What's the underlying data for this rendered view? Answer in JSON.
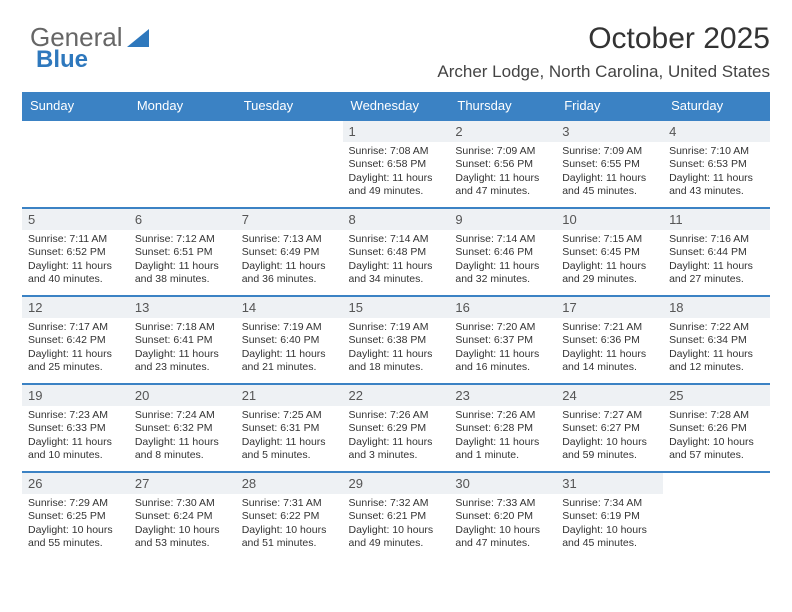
{
  "logo": {
    "word1": "General",
    "word2": "Blue",
    "color1": "#666666",
    "color2": "#2e78bd"
  },
  "title": "October 2025",
  "location": "Archer Lodge, North Carolina, United States",
  "header_bg": "#3b82c4",
  "header_fg": "#ffffff",
  "daynum_bg": "#eef1f4",
  "row_border": "#3b82c4",
  "weekdays": [
    "Sunday",
    "Monday",
    "Tuesday",
    "Wednesday",
    "Thursday",
    "Friday",
    "Saturday"
  ],
  "weeks": [
    [
      {
        "empty": true
      },
      {
        "empty": true
      },
      {
        "empty": true
      },
      {
        "num": "1",
        "sunrise": "7:08 AM",
        "sunset": "6:58 PM",
        "daylight": "11 hours and 49 minutes."
      },
      {
        "num": "2",
        "sunrise": "7:09 AM",
        "sunset": "6:56 PM",
        "daylight": "11 hours and 47 minutes."
      },
      {
        "num": "3",
        "sunrise": "7:09 AM",
        "sunset": "6:55 PM",
        "daylight": "11 hours and 45 minutes."
      },
      {
        "num": "4",
        "sunrise": "7:10 AM",
        "sunset": "6:53 PM",
        "daylight": "11 hours and 43 minutes."
      }
    ],
    [
      {
        "num": "5",
        "sunrise": "7:11 AM",
        "sunset": "6:52 PM",
        "daylight": "11 hours and 40 minutes."
      },
      {
        "num": "6",
        "sunrise": "7:12 AM",
        "sunset": "6:51 PM",
        "daylight": "11 hours and 38 minutes."
      },
      {
        "num": "7",
        "sunrise": "7:13 AM",
        "sunset": "6:49 PM",
        "daylight": "11 hours and 36 minutes."
      },
      {
        "num": "8",
        "sunrise": "7:14 AM",
        "sunset": "6:48 PM",
        "daylight": "11 hours and 34 minutes."
      },
      {
        "num": "9",
        "sunrise": "7:14 AM",
        "sunset": "6:46 PM",
        "daylight": "11 hours and 32 minutes."
      },
      {
        "num": "10",
        "sunrise": "7:15 AM",
        "sunset": "6:45 PM",
        "daylight": "11 hours and 29 minutes."
      },
      {
        "num": "11",
        "sunrise": "7:16 AM",
        "sunset": "6:44 PM",
        "daylight": "11 hours and 27 minutes."
      }
    ],
    [
      {
        "num": "12",
        "sunrise": "7:17 AM",
        "sunset": "6:42 PM",
        "daylight": "11 hours and 25 minutes."
      },
      {
        "num": "13",
        "sunrise": "7:18 AM",
        "sunset": "6:41 PM",
        "daylight": "11 hours and 23 minutes."
      },
      {
        "num": "14",
        "sunrise": "7:19 AM",
        "sunset": "6:40 PM",
        "daylight": "11 hours and 21 minutes."
      },
      {
        "num": "15",
        "sunrise": "7:19 AM",
        "sunset": "6:38 PM",
        "daylight": "11 hours and 18 minutes."
      },
      {
        "num": "16",
        "sunrise": "7:20 AM",
        "sunset": "6:37 PM",
        "daylight": "11 hours and 16 minutes."
      },
      {
        "num": "17",
        "sunrise": "7:21 AM",
        "sunset": "6:36 PM",
        "daylight": "11 hours and 14 minutes."
      },
      {
        "num": "18",
        "sunrise": "7:22 AM",
        "sunset": "6:34 PM",
        "daylight": "11 hours and 12 minutes."
      }
    ],
    [
      {
        "num": "19",
        "sunrise": "7:23 AM",
        "sunset": "6:33 PM",
        "daylight": "11 hours and 10 minutes."
      },
      {
        "num": "20",
        "sunrise": "7:24 AM",
        "sunset": "6:32 PM",
        "daylight": "11 hours and 8 minutes."
      },
      {
        "num": "21",
        "sunrise": "7:25 AM",
        "sunset": "6:31 PM",
        "daylight": "11 hours and 5 minutes."
      },
      {
        "num": "22",
        "sunrise": "7:26 AM",
        "sunset": "6:29 PM",
        "daylight": "11 hours and 3 minutes."
      },
      {
        "num": "23",
        "sunrise": "7:26 AM",
        "sunset": "6:28 PM",
        "daylight": "11 hours and 1 minute."
      },
      {
        "num": "24",
        "sunrise": "7:27 AM",
        "sunset": "6:27 PM",
        "daylight": "10 hours and 59 minutes."
      },
      {
        "num": "25",
        "sunrise": "7:28 AM",
        "sunset": "6:26 PM",
        "daylight": "10 hours and 57 minutes."
      }
    ],
    [
      {
        "num": "26",
        "sunrise": "7:29 AM",
        "sunset": "6:25 PM",
        "daylight": "10 hours and 55 minutes."
      },
      {
        "num": "27",
        "sunrise": "7:30 AM",
        "sunset": "6:24 PM",
        "daylight": "10 hours and 53 minutes."
      },
      {
        "num": "28",
        "sunrise": "7:31 AM",
        "sunset": "6:22 PM",
        "daylight": "10 hours and 51 minutes."
      },
      {
        "num": "29",
        "sunrise": "7:32 AM",
        "sunset": "6:21 PM",
        "daylight": "10 hours and 49 minutes."
      },
      {
        "num": "30",
        "sunrise": "7:33 AM",
        "sunset": "6:20 PM",
        "daylight": "10 hours and 47 minutes."
      },
      {
        "num": "31",
        "sunrise": "7:34 AM",
        "sunset": "6:19 PM",
        "daylight": "10 hours and 45 minutes."
      },
      {
        "empty": true
      }
    ]
  ],
  "labels": {
    "sunrise": "Sunrise:",
    "sunset": "Sunset:",
    "daylight": "Daylight:"
  }
}
